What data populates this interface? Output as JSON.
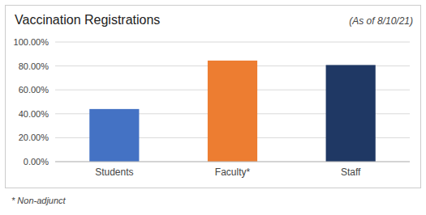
{
  "chart_data": {
    "type": "bar",
    "title": "Vaccination Registrations",
    "subtitle": "(As of 8/10/21)",
    "footnote": "* Non-adjunct",
    "categories": [
      "Students",
      "Faculty*",
      "Staff"
    ],
    "values": [
      0.44,
      0.845,
      0.808
    ],
    "colors": [
      "#4472C4",
      "#ED7D31",
      "#1F3864"
    ],
    "ylim": [
      0,
      1.0
    ],
    "yticks": [
      {
        "value": 0.0,
        "label": "0.00%"
      },
      {
        "value": 0.2,
        "label": "20.00%"
      },
      {
        "value": 0.4,
        "label": "40.00%"
      },
      {
        "value": 0.6,
        "label": "60.00%"
      },
      {
        "value": 0.8,
        "label": "80.00%"
      },
      {
        "value": 1.0,
        "label": "100.00%"
      }
    ],
    "grid": true
  }
}
